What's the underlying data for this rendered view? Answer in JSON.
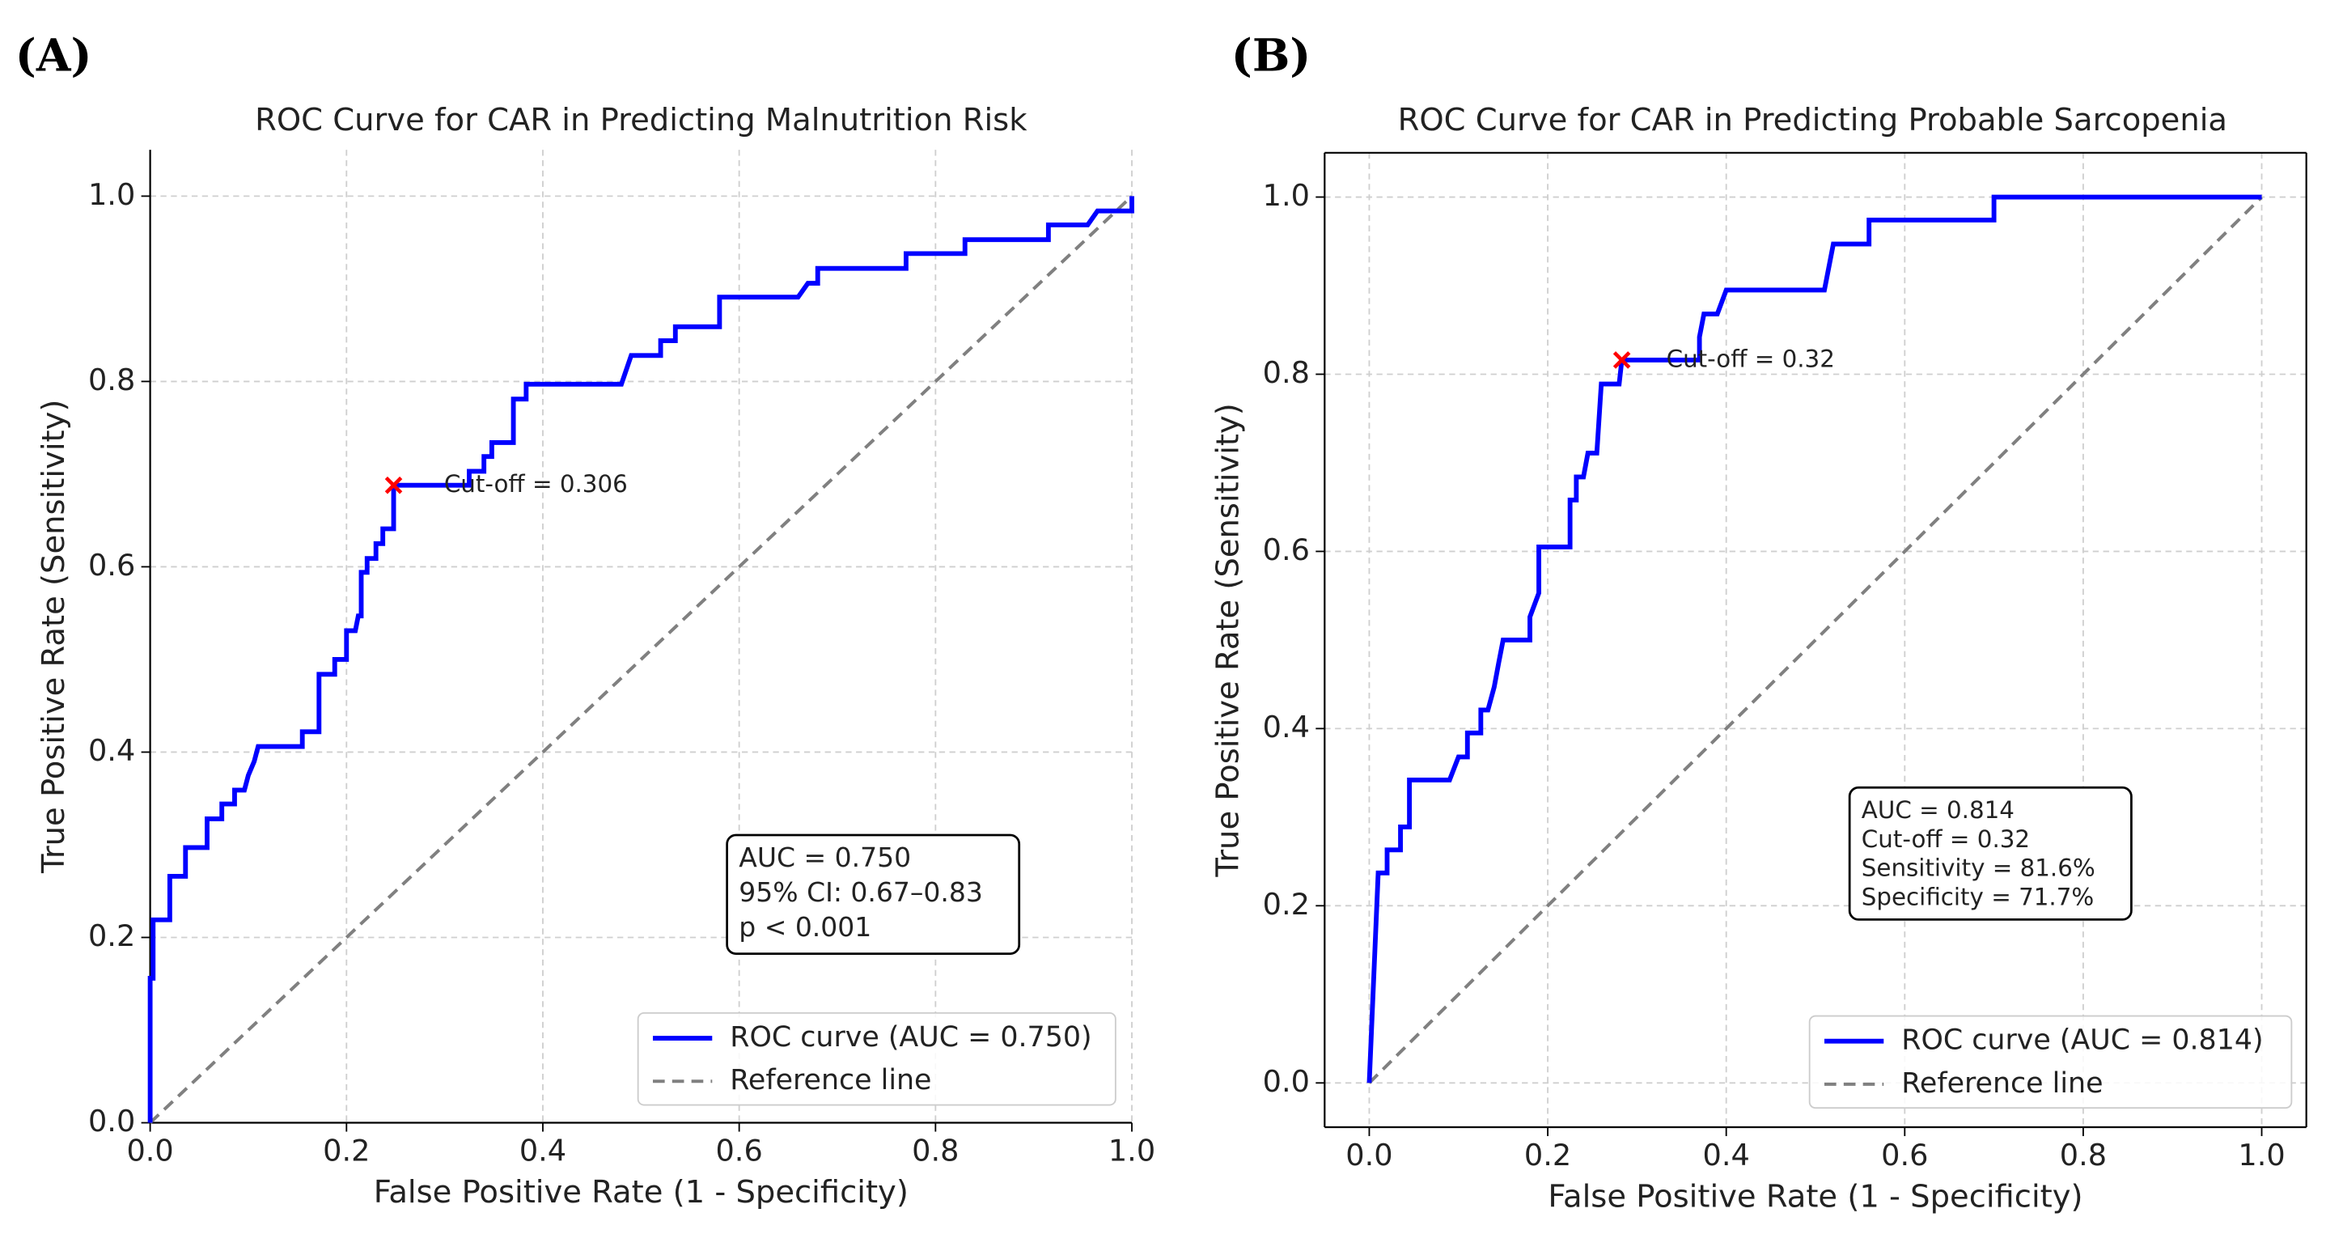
{
  "chart_data": [
    {
      "type": "line",
      "panel_label": "(A)",
      "title": "ROC Curve for CAR in Predicting Malnutrition Risk",
      "xlabel": "False Positive Rate (1 - Specificity)",
      "ylabel": "True Positive Rate (Sensitivity)",
      "xlim": [
        0,
        1
      ],
      "ylim": [
        0,
        1.05
      ],
      "xticks": [
        {
          "value": 0,
          "label": "0.0"
        },
        {
          "value": 0.2,
          "label": "0.2"
        },
        {
          "value": 0.4,
          "label": "0.4"
        },
        {
          "value": 0.6,
          "label": "0.6"
        },
        {
          "value": 0.8,
          "label": "0.8"
        },
        {
          "value": 1,
          "label": "1.0"
        }
      ],
      "yticks": [
        {
          "value": 0,
          "label": "0.0"
        },
        {
          "value": 0.2,
          "label": "0.2"
        },
        {
          "value": 0.4,
          "label": "0.4"
        },
        {
          "value": 0.6,
          "label": "0.6"
        },
        {
          "value": 0.8,
          "label": "0.8"
        },
        {
          "value": 1,
          "label": "1.0"
        }
      ],
      "grid": true,
      "legend": "lower right",
      "box": false,
      "series": [
        {
          "name": "ROC curve (AUC = 0.750)",
          "color": "#0000ff",
          "x": [
            0,
            0,
            0.003,
            0.003,
            0.02,
            0.02,
            0.036,
            0.036,
            0.058,
            0.058,
            0.073,
            0.073,
            0.086,
            0.086,
            0.096,
            0.1,
            0.106,
            0.11,
            0.155,
            0.155,
            0.172,
            0.172,
            0.188,
            0.188,
            0.2,
            0.2,
            0.209,
            0.212,
            0.215,
            0.215,
            0.221,
            0.221,
            0.23,
            0.23,
            0.237,
            0.237,
            0.248,
            0.248,
            0.325,
            0.325,
            0.34,
            0.34,
            0.348,
            0.348,
            0.37,
            0.37,
            0.383,
            0.383,
            0.48,
            0.49,
            0.52,
            0.52,
            0.535,
            0.535,
            0.58,
            0.58,
            0.66,
            0.67,
            0.68,
            0.68,
            0.77,
            0.77,
            0.83,
            0.83,
            0.915,
            0.915,
            0.955,
            0.965,
            1,
            1
          ],
          "values": [
            0,
            0.156,
            0.156,
            0.219,
            0.219,
            0.266,
            0.266,
            0.297,
            0.297,
            0.328,
            0.328,
            0.344,
            0.344,
            0.359,
            0.359,
            0.375,
            0.39,
            0.406,
            0.406,
            0.422,
            0.422,
            0.484,
            0.484,
            0.5,
            0.5,
            0.531,
            0.531,
            0.547,
            0.547,
            0.594,
            0.594,
            0.609,
            0.609,
            0.625,
            0.625,
            0.641,
            0.641,
            0.688,
            0.688,
            0.703,
            0.703,
            0.719,
            0.719,
            0.734,
            0.734,
            0.781,
            0.781,
            0.797,
            0.797,
            0.828,
            0.828,
            0.844,
            0.844,
            0.859,
            0.859,
            0.891,
            0.891,
            0.906,
            0.906,
            0.922,
            0.922,
            0.938,
            0.938,
            0.953,
            0.953,
            0.969,
            0.969,
            0.984,
            0.984,
            1
          ]
        },
        {
          "name": "Reference line",
          "color": "#808080",
          "dashed": true,
          "x": [
            0,
            1
          ],
          "values": [
            0,
            1
          ]
        }
      ],
      "cutoff": {
        "x": 0.248,
        "y": 0.688,
        "label": "Cut-off = 0.306",
        "color": "#ff0000"
      },
      "stats": [
        "AUC = 0.750",
        "95% CI: 0.67–0.83",
        "p < 0.001"
      ]
    },
    {
      "type": "line",
      "panel_label": "(B)",
      "title": "ROC Curve for CAR in Predicting Probable Sarcopenia",
      "xlabel": "False Positive Rate (1 - Specificity)",
      "ylabel": "True Positive Rate (Sensitivity)",
      "xlim": [
        -0.05,
        1.05
      ],
      "ylim": [
        -0.05,
        1.05
      ],
      "xticks": [
        {
          "value": 0,
          "label": "0.0"
        },
        {
          "value": 0.2,
          "label": "0.2"
        },
        {
          "value": 0.4,
          "label": "0.4"
        },
        {
          "value": 0.6,
          "label": "0.6"
        },
        {
          "value": 0.8,
          "label": "0.8"
        },
        {
          "value": 1,
          "label": "1.0"
        }
      ],
      "yticks": [
        {
          "value": 0,
          "label": "0.0"
        },
        {
          "value": 0.2,
          "label": "0.2"
        },
        {
          "value": 0.4,
          "label": "0.4"
        },
        {
          "value": 0.6,
          "label": "0.6"
        },
        {
          "value": 0.8,
          "label": "0.8"
        },
        {
          "value": 1,
          "label": "1.0"
        }
      ],
      "grid": true,
      "legend": "lower right",
      "box": true,
      "series": [
        {
          "name": "ROC curve (AUC = 0.814)",
          "color": "#0000ff",
          "x": [
            0,
            0.01,
            0.02,
            0.02,
            0.035,
            0.035,
            0.045,
            0.045,
            0.09,
            0.1,
            0.11,
            0.11,
            0.125,
            0.125,
            0.133,
            0.14,
            0.145,
            0.15,
            0.18,
            0.18,
            0.19,
            0.19,
            0.225,
            0.225,
            0.232,
            0.232,
            0.24,
            0.245,
            0.255,
            0.26,
            0.28,
            0.283,
            0.37,
            0.37,
            0.375,
            0.39,
            0.4,
            0.51,
            0.52,
            0.56,
            0.56,
            0.7,
            0.7,
            1
          ],
          "values": [
            0,
            0.237,
            0.237,
            0.263,
            0.263,
            0.289,
            0.289,
            0.342,
            0.342,
            0.368,
            0.368,
            0.395,
            0.395,
            0.421,
            0.421,
            0.447,
            0.474,
            0.5,
            0.5,
            0.526,
            0.553,
            0.605,
            0.605,
            0.658,
            0.658,
            0.684,
            0.684,
            0.711,
            0.711,
            0.789,
            0.789,
            0.816,
            0.816,
            0.842,
            0.868,
            0.868,
            0.895,
            0.895,
            0.947,
            0.947,
            0.974,
            0.974,
            1,
            1
          ]
        },
        {
          "name": "Reference line",
          "color": "#808080",
          "dashed": true,
          "x": [
            0,
            1
          ],
          "values": [
            0,
            1
          ]
        }
      ],
      "cutoff": {
        "x": 0.283,
        "y": 0.816,
        "label": "Cut-off = 0.32",
        "color": "#ff0000"
      },
      "stats": [
        "AUC = 0.814",
        "Cut-off = 0.32",
        "Sensitivity = 81.6%",
        "Specificity = 71.7%"
      ]
    }
  ]
}
